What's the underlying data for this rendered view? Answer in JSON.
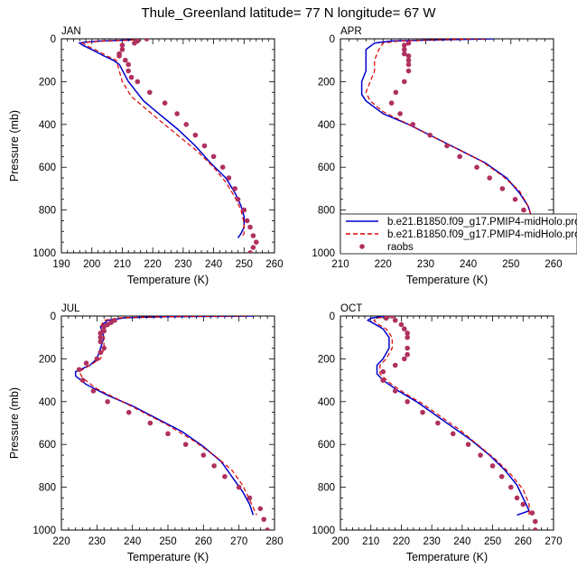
{
  "title": "Thule_Greenland  latitude= 77 N longitude= 67 W",
  "legend": {
    "entries": [
      {
        "label": "b.e21.B1850.f09_g17.PMIP4-midHolo.pro",
        "color": "#0000cc",
        "style": "solid-line"
      },
      {
        "label": "b.e21.B1850.f09_g17.PMIP4-midHolo.pro",
        "color": "#dd0000",
        "style": "dashed-line"
      },
      {
        "label": "raobs",
        "color": "#b03060",
        "style": "dot"
      }
    ]
  },
  "chart_data": [
    {
      "type": "line",
      "panel": "JAN",
      "xlabel": "Temperature (K)",
      "ylabel": "Pressure (mb)",
      "xlim": [
        190,
        260
      ],
      "ylim": [
        1000,
        0
      ],
      "xticks": [
        190,
        200,
        210,
        220,
        230,
        240,
        250,
        260
      ],
      "yticks": [
        0,
        200,
        400,
        600,
        800,
        1000
      ],
      "series": [
        {
          "name": "b.e21.B1850.f09_g17.PMIP4-midHolo.pro",
          "color": "#0000cc",
          "dash": false,
          "x": [
            213,
            203,
            198,
            196,
            197,
            200,
            204,
            207,
            209,
            212,
            217,
            222,
            228,
            234,
            239,
            244,
            247,
            249,
            250,
            250,
            249,
            248
          ],
          "y": [
            5,
            10,
            15,
            20,
            30,
            50,
            80,
            100,
            120,
            200,
            290,
            350,
            420,
            500,
            580,
            650,
            720,
            780,
            830,
            880,
            910,
            930
          ]
        },
        {
          "name": "b.e21.B1850.f09_g17.PMIP4-midHolo.pro",
          "color": "#dd0000",
          "dash": true,
          "x": [
            214,
            204,
            199,
            197,
            198,
            201,
            205,
            208,
            209,
            210,
            213,
            218,
            223,
            229,
            235,
            240,
            244,
            247,
            249,
            250,
            250,
            249
          ],
          "y": [
            5,
            10,
            15,
            20,
            30,
            50,
            80,
            100,
            150,
            200,
            270,
            330,
            390,
            460,
            530,
            600,
            670,
            740,
            800,
            860,
            910,
            930
          ]
        },
        {
          "name": "raobs",
          "color": "#b03060",
          "points": true,
          "x": [
            218,
            215,
            214,
            210,
            210,
            209,
            209,
            211,
            212,
            212,
            213,
            215,
            219,
            224,
            228,
            231,
            234,
            237,
            240,
            243,
            245,
            247,
            248,
            250,
            251,
            252,
            253,
            254,
            253,
            252
          ],
          "y": [
            0,
            10,
            20,
            30,
            50,
            70,
            80,
            100,
            120,
            150,
            180,
            200,
            250,
            300,
            350,
            400,
            450,
            500,
            550,
            600,
            650,
            700,
            750,
            800,
            850,
            880,
            920,
            950,
            975,
            1000
          ]
        }
      ]
    },
    {
      "type": "line",
      "panel": "APR",
      "xlabel": "Temperature (K)",
      "ylabel": "",
      "xlim": [
        210,
        260
      ],
      "ylim": [
        1000,
        0
      ],
      "xticks": [
        210,
        220,
        230,
        240,
        250,
        260
      ],
      "yticks": [
        0,
        200,
        400,
        600,
        800,
        1000
      ],
      "series": [
        {
          "name": "b.e21.B1850.f09_g17.PMIP4-midHolo.pro",
          "color": "#0000cc",
          "dash": false,
          "x": [
            246,
            232,
            222,
            218,
            216,
            216,
            216,
            215,
            215,
            216,
            220,
            226,
            232,
            238,
            244,
            249,
            252,
            254,
            255,
            256,
            256,
            256
          ],
          "y": [
            0,
            5,
            10,
            20,
            50,
            100,
            150,
            200,
            260,
            290,
            350,
            400,
            460,
            520,
            580,
            650,
            720,
            780,
            840,
            880,
            910,
            930
          ]
        },
        {
          "name": "b.e21.B1850.f09_g17.PMIP4-midHolo.pro",
          "color": "#dd0000",
          "dash": true,
          "x": [
            244,
            231,
            224,
            220,
            219,
            218,
            218,
            217,
            216,
            217,
            220,
            225,
            231,
            237,
            243,
            248,
            252,
            254,
            255,
            256,
            256
          ],
          "y": [
            0,
            5,
            10,
            20,
            50,
            100,
            150,
            200,
            250,
            290,
            340,
            390,
            450,
            510,
            570,
            640,
            710,
            780,
            840,
            900,
            930
          ]
        },
        {
          "name": "raobs",
          "color": "#b03060",
          "points": true,
          "x": [
            226,
            225,
            225,
            225,
            226,
            226,
            226,
            226,
            225,
            223,
            222,
            224,
            227,
            231,
            235,
            238,
            242,
            245,
            248,
            251,
            253,
            255,
            257,
            258
          ],
          "y": [
            20,
            30,
            50,
            70,
            80,
            100,
            120,
            150,
            200,
            250,
            300,
            350,
            400,
            450,
            500,
            550,
            600,
            650,
            700,
            750,
            800,
            850,
            950,
            1000
          ]
        }
      ]
    },
    {
      "type": "line",
      "panel": "JUL",
      "xlabel": "Temperature (K)",
      "ylabel": "Pressure (mb)",
      "xlim": [
        220,
        280
      ],
      "ylim": [
        1000,
        0
      ],
      "xticks": [
        220,
        230,
        240,
        250,
        260,
        270,
        280
      ],
      "yticks": [
        0,
        200,
        400,
        600,
        800,
        1000
      ],
      "series": [
        {
          "name": "b.e21.B1850.f09_g17.PMIP4-midHolo.pro",
          "color": "#0000cc",
          "dash": false,
          "x": [
            274,
            250,
            238,
            233,
            231,
            232,
            231,
            230,
            228,
            224,
            224,
            227,
            233,
            240,
            247,
            254,
            260,
            265,
            268,
            271,
            273,
            274
          ],
          "y": [
            0,
            3,
            8,
            20,
            50,
            100,
            150,
            200,
            230,
            260,
            280,
            320,
            370,
            420,
            480,
            540,
            610,
            680,
            750,
            820,
            880,
            930
          ]
        },
        {
          "name": "b.e21.B1850.f09_g17.PMIP4-midHolo.pro",
          "color": "#dd0000",
          "dash": true,
          "x": [
            272,
            249,
            237,
            232,
            231,
            232,
            232,
            231,
            228,
            225,
            226,
            230,
            236,
            243,
            250,
            257,
            263,
            268,
            271,
            273,
            275
          ],
          "y": [
            0,
            3,
            8,
            20,
            50,
            100,
            150,
            200,
            230,
            260,
            290,
            340,
            390,
            450,
            510,
            580,
            650,
            720,
            790,
            860,
            930
          ]
        },
        {
          "name": "raobs",
          "color": "#b03060",
          "points": true,
          "x": [
            235,
            234,
            233,
            232,
            232,
            231,
            231,
            231,
            232,
            231,
            230,
            227,
            225,
            226,
            229,
            233,
            239,
            245,
            250,
            255,
            260,
            263,
            266,
            270,
            273,
            276,
            277,
            278
          ],
          "y": [
            20,
            30,
            40,
            50,
            70,
            80,
            100,
            120,
            150,
            170,
            200,
            220,
            250,
            300,
            350,
            400,
            450,
            500,
            550,
            600,
            650,
            700,
            750,
            800,
            850,
            900,
            950,
            1000
          ]
        }
      ]
    },
    {
      "type": "line",
      "panel": "OCT",
      "xlabel": "Temperature (K)",
      "ylabel": "",
      "xlim": [
        200,
        270
      ],
      "ylim": [
        1000,
        0
      ],
      "xticks": [
        200,
        210,
        220,
        230,
        240,
        250,
        260,
        270
      ],
      "yticks": [
        0,
        200,
        400,
        600,
        800,
        1000
      ],
      "series": [
        {
          "name": "b.e21.B1850.f09_g17.PMIP4-midHolo.pro",
          "color": "#0000cc",
          "dash": false,
          "x": [
            215,
            210,
            209,
            211,
            214,
            216,
            216,
            214,
            212,
            212,
            214,
            219,
            225,
            231,
            237,
            243,
            249,
            254,
            258,
            260,
            261,
            262,
            258
          ],
          "y": [
            0,
            10,
            20,
            35,
            60,
            100,
            150,
            200,
            230,
            270,
            300,
            350,
            400,
            460,
            520,
            580,
            650,
            720,
            790,
            850,
            880,
            910,
            930
          ]
        },
        {
          "name": "b.e21.B1850.f09_g17.PMIP4-midHolo.pro",
          "color": "#dd0000",
          "dash": true,
          "x": [
            216,
            212,
            211,
            212,
            215,
            217,
            217,
            215,
            213,
            213,
            216,
            221,
            227,
            233,
            239,
            245,
            251,
            256,
            260,
            262,
            262
          ],
          "y": [
            0,
            10,
            20,
            35,
            60,
            100,
            150,
            200,
            230,
            270,
            310,
            360,
            410,
            470,
            530,
            600,
            670,
            740,
            810,
            880,
            930
          ]
        },
        {
          "name": "raobs",
          "color": "#b03060",
          "points": true,
          "x": [
            217,
            215,
            218,
            220,
            221,
            222,
            222,
            222,
            222,
            221,
            218,
            214,
            214,
            218,
            222,
            227,
            232,
            237,
            242,
            246,
            250,
            253,
            256,
            258,
            260,
            263,
            264,
            264
          ],
          "y": [
            0,
            10,
            20,
            40,
            60,
            80,
            100,
            150,
            180,
            200,
            230,
            260,
            300,
            350,
            400,
            450,
            500,
            550,
            600,
            650,
            700,
            750,
            800,
            850,
            880,
            920,
            960,
            1000
          ]
        }
      ]
    }
  ]
}
